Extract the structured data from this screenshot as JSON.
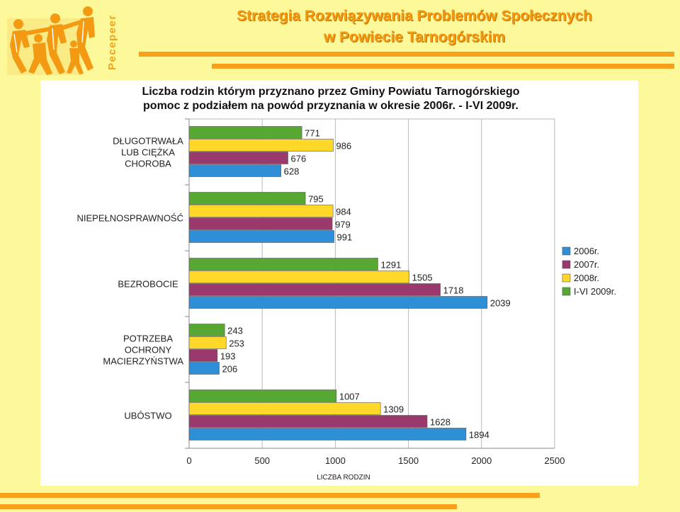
{
  "header": {
    "title_line1": "Strategia Rozwiązywania Problemów Społecznych",
    "title_line2": "w Powiecie Tarnogórskim",
    "logo_text": "Pecepeer",
    "accent_color": "#f39a12",
    "stripe_color": "#f6a01c",
    "logo_icon": "dancing-people-logo"
  },
  "chart_data": {
    "type": "bar",
    "orientation": "horizontal",
    "title_line1": "Liczba rodzin którym przyznano przez Gminy Powiatu Tarnogórskiego",
    "title_line2": "pomoc z podziałem na powód przyznania w okresie 2006r. - I-VI 2009r.",
    "xlabel": "LICZBA RODZIN",
    "ylabel": "",
    "xlim": [
      0,
      2500
    ],
    "ticks": [
      "0",
      "500",
      "1000",
      "1500",
      "2000",
      "2500"
    ],
    "grid": true,
    "legend_position": "right",
    "categories": [
      [
        "DŁUGOTRWAŁA",
        "LUB CIĘŻKA",
        "CHOROBA"
      ],
      [
        "NIEPEŁNOSPRAWNOŚĆ"
      ],
      [
        "BEZROBOCIE"
      ],
      [
        "POTRZEBA",
        "OCHRONY",
        "MACIERZYŃSTWA"
      ],
      [
        "UBÓSTWO"
      ]
    ],
    "series": [
      {
        "name": "I-VI 2009r.",
        "color": "#56a832",
        "values": [
          771,
          795,
          1291,
          243,
          1007
        ]
      },
      {
        "name": "2008r.",
        "color": "#ffd82a",
        "values": [
          986,
          984,
          1505,
          253,
          1309
        ]
      },
      {
        "name": "2007r.",
        "color": "#9a3a6c",
        "values": [
          676,
          979,
          1718,
          193,
          1628
        ]
      },
      {
        "name": "2006r.",
        "color": "#2e8fd6",
        "values": [
          628,
          991,
          2039,
          206,
          1894
        ]
      }
    ],
    "legend_order": [
      "2006r.",
      "2007r.",
      "2008r.",
      "I-VI 2009r."
    ]
  }
}
